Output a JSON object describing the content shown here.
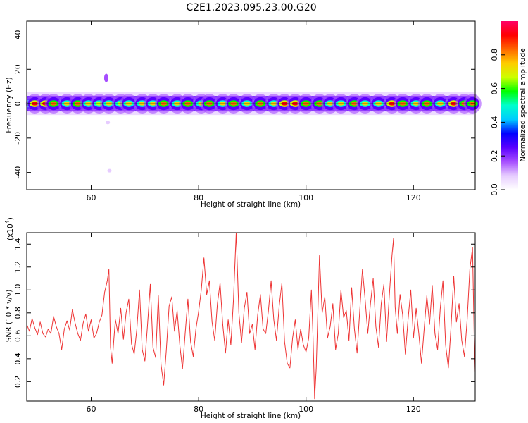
{
  "figure": {
    "title": "C2E1.2023.095.23.00.G20"
  },
  "chart_data": [
    {
      "type": "heatmap",
      "xlabel": "Height of straight line (km)",
      "ylabel": "Frequency (Hz)",
      "xlim": [
        48,
        131.5
      ],
      "ylim": [
        -50,
        48
      ],
      "xticks": [
        60,
        80,
        100,
        120
      ],
      "yticks": [
        40,
        20,
        0,
        -20,
        -40
      ],
      "colorbar": {
        "label": "Normalized spectral amplitude",
        "range": [
          0,
          1
        ],
        "ticks": [
          0.0,
          0.2,
          0.4,
          0.6,
          0.8
        ],
        "colormap": [
          "#ffffff",
          "#e6ccff",
          "#a64dff",
          "#5a00ff",
          "#0000ff",
          "#00ccff",
          "#00ffcc",
          "#00ff00",
          "#ccff00",
          "#ffcc00",
          "#ff6600",
          "#ff0000",
          "#ff0066"
        ]
      },
      "band_center_hz": 0,
      "band_halfwidth_hz": 3,
      "peaks": [
        {
          "x": 49.5,
          "a": 0.88
        },
        {
          "x": 51.5,
          "a": 0.92
        },
        {
          "x": 53.0,
          "a": 0.8
        },
        {
          "x": 55.5,
          "a": 0.78
        },
        {
          "x": 57.5,
          "a": 0.85
        },
        {
          "x": 59.5,
          "a": 0.72
        },
        {
          "x": 61.5,
          "a": 0.7
        },
        {
          "x": 63.3,
          "a": 0.78
        },
        {
          "x": 65.5,
          "a": 0.7
        },
        {
          "x": 67.0,
          "a": 0.74
        },
        {
          "x": 69.5,
          "a": 0.72
        },
        {
          "x": 71.5,
          "a": 0.74
        },
        {
          "x": 73.5,
          "a": 0.86
        },
        {
          "x": 76.0,
          "a": 0.78
        },
        {
          "x": 78.0,
          "a": 0.8
        },
        {
          "x": 80.5,
          "a": 0.72
        },
        {
          "x": 82.0,
          "a": 0.82
        },
        {
          "x": 84.5,
          "a": 0.76
        },
        {
          "x": 86.5,
          "a": 0.8
        },
        {
          "x": 89.0,
          "a": 0.74
        },
        {
          "x": 91.5,
          "a": 0.84
        },
        {
          "x": 94.0,
          "a": 0.78
        },
        {
          "x": 96.0,
          "a": 0.88
        },
        {
          "x": 98.0,
          "a": 0.92
        },
        {
          "x": 100.0,
          "a": 0.86
        },
        {
          "x": 102.5,
          "a": 0.82
        },
        {
          "x": 104.5,
          "a": 0.74
        },
        {
          "x": 106.5,
          "a": 0.78
        },
        {
          "x": 109.0,
          "a": 0.8
        },
        {
          "x": 111.0,
          "a": 0.76
        },
        {
          "x": 113.5,
          "a": 0.78
        },
        {
          "x": 116.0,
          "a": 0.9
        },
        {
          "x": 118.0,
          "a": 0.82
        },
        {
          "x": 120.5,
          "a": 0.76
        },
        {
          "x": 122.5,
          "a": 0.84
        },
        {
          "x": 125.0,
          "a": 0.74
        },
        {
          "x": 127.5,
          "a": 0.88
        },
        {
          "x": 129.5,
          "a": 0.8
        },
        {
          "x": 131.0,
          "a": 0.86
        }
      ],
      "outliers": [
        {
          "x": 62.8,
          "y": 15,
          "a": 0.18
        },
        {
          "x": 63.1,
          "y": -11,
          "a": 0.12
        },
        {
          "x": 63.4,
          "y": -39,
          "a": 0.12
        }
      ]
    },
    {
      "type": "line",
      "xlabel": "Height of straight line (km)",
      "ylabel": "SNR (10 * v/v)",
      "scale_label": "(x10^4)",
      "xlim": [
        48,
        131.5
      ],
      "ylim": [
        0.03,
        1.5
      ],
      "xticks": [
        60,
        80,
        100,
        120
      ],
      "yticks": [
        0.2,
        0.4,
        0.6,
        0.8,
        1.0,
        1.2,
        1.4
      ],
      "color": "#ee3333",
      "series": [
        {
          "points": [
            [
              48.0,
              0.7
            ],
            [
              48.5,
              0.64
            ],
            [
              49.0,
              0.75
            ],
            [
              49.5,
              0.67
            ],
            [
              50.0,
              0.61
            ],
            [
              50.5,
              0.72
            ],
            [
              51.0,
              0.62
            ],
            [
              51.5,
              0.59
            ],
            [
              52.0,
              0.66
            ],
            [
              52.5,
              0.62
            ],
            [
              53.0,
              0.77
            ],
            [
              53.5,
              0.68
            ],
            [
              54.0,
              0.62
            ],
            [
              54.5,
              0.48
            ],
            [
              55.0,
              0.66
            ],
            [
              55.5,
              0.73
            ],
            [
              56.0,
              0.65
            ],
            [
              56.5,
              0.83
            ],
            [
              57.0,
              0.71
            ],
            [
              57.5,
              0.62
            ],
            [
              58.0,
              0.56
            ],
            [
              58.5,
              0.71
            ],
            [
              59.0,
              0.79
            ],
            [
              59.5,
              0.64
            ],
            [
              60.0,
              0.74
            ],
            [
              60.5,
              0.58
            ],
            [
              61.0,
              0.62
            ],
            [
              61.5,
              0.72
            ],
            [
              62.0,
              0.78
            ],
            [
              62.5,
              0.98
            ],
            [
              63.0,
              1.08
            ],
            [
              63.3,
              1.18
            ],
            [
              63.6,
              0.5
            ],
            [
              63.9,
              0.36
            ],
            [
              64.2,
              0.56
            ],
            [
              64.5,
              0.74
            ],
            [
              65.0,
              0.62
            ],
            [
              65.5,
              0.84
            ],
            [
              66.0,
              0.57
            ],
            [
              66.5,
              0.8
            ],
            [
              67.0,
              0.92
            ],
            [
              67.5,
              0.53
            ],
            [
              68.0,
              0.44
            ],
            [
              68.5,
              0.66
            ],
            [
              69.0,
              1.0
            ],
            [
              69.5,
              0.48
            ],
            [
              70.0,
              0.38
            ],
            [
              70.5,
              0.7
            ],
            [
              71.0,
              1.05
            ],
            [
              71.5,
              0.5
            ],
            [
              72.0,
              0.41
            ],
            [
              72.5,
              0.95
            ],
            [
              73.0,
              0.35
            ],
            [
              73.5,
              0.17
            ],
            [
              74.0,
              0.48
            ],
            [
              74.5,
              0.86
            ],
            [
              75.0,
              0.94
            ],
            [
              75.5,
              0.64
            ],
            [
              76.0,
              0.82
            ],
            [
              76.5,
              0.52
            ],
            [
              77.0,
              0.31
            ],
            [
              77.5,
              0.62
            ],
            [
              78.0,
              0.92
            ],
            [
              78.5,
              0.55
            ],
            [
              79.0,
              0.42
            ],
            [
              79.5,
              0.66
            ],
            [
              80.0,
              0.81
            ],
            [
              80.5,
              1.0
            ],
            [
              81.0,
              1.28
            ],
            [
              81.5,
              0.96
            ],
            [
              82.0,
              1.08
            ],
            [
              82.5,
              0.72
            ],
            [
              83.0,
              0.56
            ],
            [
              83.5,
              0.88
            ],
            [
              84.0,
              1.06
            ],
            [
              84.5,
              0.7
            ],
            [
              85.0,
              0.45
            ],
            [
              85.5,
              0.74
            ],
            [
              86.0,
              0.52
            ],
            [
              86.5,
              0.92
            ],
            [
              87.0,
              1.5
            ],
            [
              87.5,
              0.8
            ],
            [
              88.0,
              0.54
            ],
            [
              88.5,
              0.84
            ],
            [
              89.0,
              0.98
            ],
            [
              89.5,
              0.62
            ],
            [
              90.0,
              0.7
            ],
            [
              90.5,
              0.48
            ],
            [
              91.0,
              0.78
            ],
            [
              91.5,
              0.96
            ],
            [
              92.0,
              0.66
            ],
            [
              92.5,
              0.62
            ],
            [
              93.0,
              0.82
            ],
            [
              93.5,
              1.08
            ],
            [
              94.0,
              0.74
            ],
            [
              94.5,
              0.56
            ],
            [
              95.0,
              0.86
            ],
            [
              95.5,
              1.06
            ],
            [
              96.0,
              0.55
            ],
            [
              96.5,
              0.36
            ],
            [
              97.0,
              0.32
            ],
            [
              97.5,
              0.58
            ],
            [
              98.0,
              0.74
            ],
            [
              98.5,
              0.48
            ],
            [
              99.0,
              0.66
            ],
            [
              99.5,
              0.52
            ],
            [
              100.0,
              0.46
            ],
            [
              100.5,
              0.58
            ],
            [
              101.0,
              1.0
            ],
            [
              101.3,
              0.6
            ],
            [
              101.6,
              0.05
            ],
            [
              101.9,
              0.32
            ],
            [
              102.5,
              1.3
            ],
            [
              103.0,
              0.8
            ],
            [
              103.5,
              0.94
            ],
            [
              104.0,
              0.58
            ],
            [
              104.5,
              0.68
            ],
            [
              105.0,
              0.88
            ],
            [
              105.5,
              0.48
            ],
            [
              106.0,
              0.62
            ],
            [
              106.5,
              1.0
            ],
            [
              107.0,
              0.76
            ],
            [
              107.5,
              0.82
            ],
            [
              108.0,
              0.56
            ],
            [
              108.5,
              1.02
            ],
            [
              109.0,
              0.66
            ],
            [
              109.5,
              0.45
            ],
            [
              110.0,
              0.82
            ],
            [
              110.5,
              1.18
            ],
            [
              111.0,
              0.92
            ],
            [
              111.5,
              0.62
            ],
            [
              112.0,
              0.88
            ],
            [
              112.5,
              1.1
            ],
            [
              113.0,
              0.68
            ],
            [
              113.5,
              0.5
            ],
            [
              114.0,
              0.88
            ],
            [
              114.5,
              1.05
            ],
            [
              115.0,
              0.55
            ],
            [
              115.5,
              0.94
            ],
            [
              116.0,
              1.3
            ],
            [
              116.3,
              1.45
            ],
            [
              116.6,
              0.85
            ],
            [
              117.0,
              0.62
            ],
            [
              117.5,
              0.96
            ],
            [
              118.0,
              0.78
            ],
            [
              118.5,
              0.44
            ],
            [
              119.0,
              0.74
            ],
            [
              119.5,
              1.0
            ],
            [
              120.0,
              0.58
            ],
            [
              120.5,
              0.84
            ],
            [
              121.0,
              0.62
            ],
            [
              121.5,
              0.36
            ],
            [
              122.0,
              0.66
            ],
            [
              122.5,
              0.95
            ],
            [
              123.0,
              0.7
            ],
            [
              123.5,
              1.04
            ],
            [
              124.0,
              0.62
            ],
            [
              124.5,
              0.48
            ],
            [
              125.0,
              0.84
            ],
            [
              125.5,
              1.08
            ],
            [
              126.0,
              0.52
            ],
            [
              126.5,
              0.32
            ],
            [
              127.0,
              0.68
            ],
            [
              127.5,
              1.12
            ],
            [
              128.0,
              0.72
            ],
            [
              128.5,
              0.88
            ],
            [
              129.0,
              0.56
            ],
            [
              129.5,
              0.42
            ],
            [
              130.0,
              0.74
            ],
            [
              130.5,
              1.18
            ],
            [
              131.0,
              1.37
            ],
            [
              131.3,
              0.6
            ],
            [
              131.5,
              0.28
            ]
          ]
        }
      ]
    }
  ]
}
